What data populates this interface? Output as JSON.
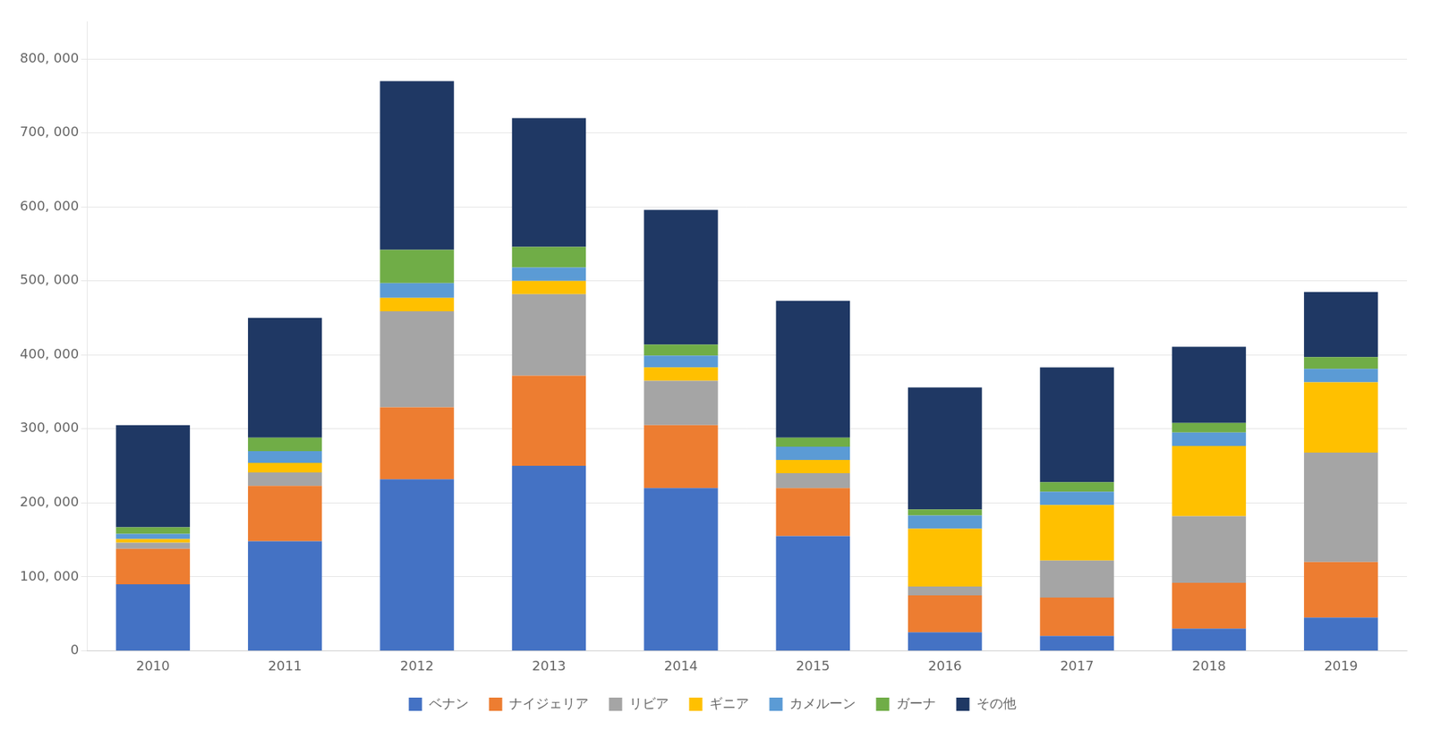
{
  "chart_data": {
    "type": "bar",
    "stacked": true,
    "categories": [
      "2010",
      "2011",
      "2012",
      "2013",
      "2014",
      "2015",
      "2016",
      "2017",
      "2018",
      "2019"
    ],
    "series": [
      {
        "name": "ベナン",
        "color": "#4472C4",
        "values": [
          90000,
          148000,
          232000,
          250000,
          220000,
          155000,
          25000,
          20000,
          30000,
          45000
        ]
      },
      {
        "name": "ナイジェリア",
        "color": "#ED7D31",
        "values": [
          48000,
          75000,
          97000,
          122000,
          85000,
          65000,
          50000,
          52000,
          62000,
          75000
        ]
      },
      {
        "name": "リビア",
        "color": "#A5A5A5",
        "values": [
          8000,
          18000,
          130000,
          110000,
          60000,
          20000,
          12000,
          50000,
          90000,
          148000
        ]
      },
      {
        "name": "ギニア",
        "color": "#FFC000",
        "values": [
          5000,
          13000,
          18000,
          18000,
          18000,
          18000,
          78000,
          75000,
          95000,
          95000
        ]
      },
      {
        "name": "カメルーン",
        "color": "#5B9BD5",
        "values": [
          7000,
          16000,
          20000,
          18000,
          16000,
          18000,
          18000,
          18000,
          18000,
          18000
        ]
      },
      {
        "name": "ガーナ",
        "color": "#70AD47",
        "values": [
          9000,
          18000,
          45000,
          28000,
          15000,
          12000,
          8000,
          13000,
          13000,
          16000
        ]
      },
      {
        "name": "その他",
        "color": "#1F3864",
        "values": [
          138000,
          162000,
          228000,
          174000,
          182000,
          185000,
          165000,
          155000,
          103000,
          88000
        ]
      }
    ],
    "ylim": [
      0,
      850000
    ],
    "yticks": [
      0,
      {
        "value": 100000,
        "label": "100, 000"
      },
      {
        "value": 200000,
        "label": "200, 000"
      },
      {
        "value": 300000,
        "label": "300, 000"
      },
      {
        "value": 400000,
        "label": "400, 000"
      },
      {
        "value": 500000,
        "label": "500, 000"
      },
      {
        "value": 600000,
        "label": "600, 000"
      },
      {
        "value": 700000,
        "label": "700, 000"
      },
      {
        "value": 800000,
        "label": "800, 000"
      }
    ],
    "grid": true,
    "legend": "bottom"
  }
}
